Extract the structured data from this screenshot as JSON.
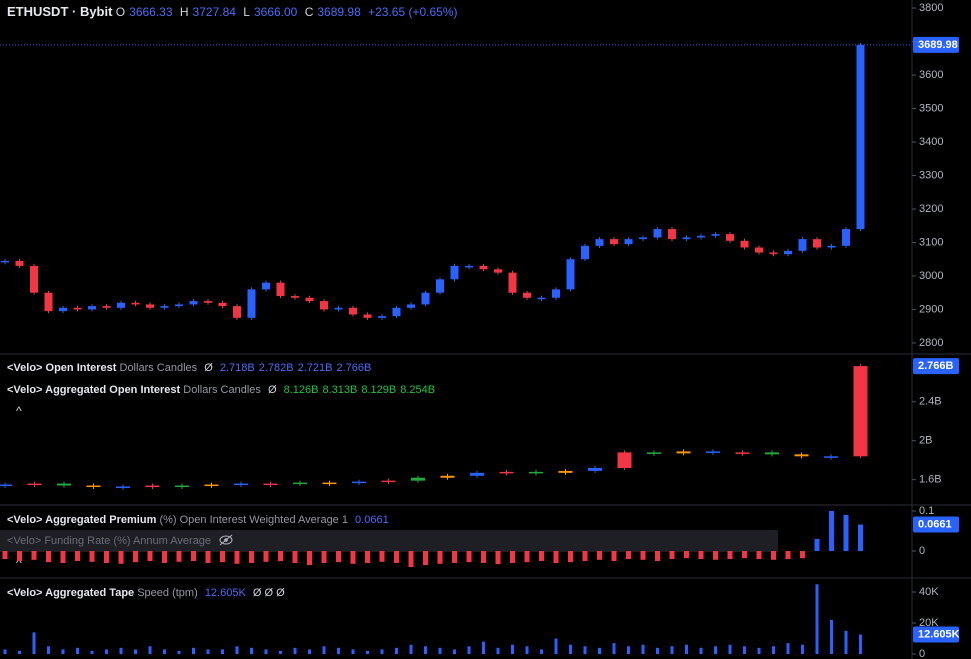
{
  "header": {
    "symbol": "ETHUSDT · Bybit",
    "open_label": "O",
    "open": "3666.33",
    "high_label": "H",
    "high": "3727.84",
    "low_label": "L",
    "low": "3666.00",
    "close_label": "C",
    "close": "3689.98",
    "change": "+23.65 (+0.65%)"
  },
  "price": {
    "ylim": [
      2770,
      3824
    ],
    "yticks": [
      2800,
      2900,
      3000,
      3100,
      3200,
      3300,
      3400,
      3500,
      3600,
      3700,
      3800
    ],
    "last_label": "3689.98",
    "up_color": "#2962ff",
    "down_color": "#f23645",
    "values": [
      3045,
      3030,
      2950,
      2895,
      2905,
      2900,
      2910,
      2905,
      2920,
      2915,
      2905,
      2910,
      2915,
      2925,
      2920,
      2910,
      2875,
      2960,
      2980,
      2940,
      2935,
      2925,
      2900,
      2905,
      2885,
      2875,
      2880,
      2905,
      2915,
      2950,
      2990,
      3030,
      3030,
      3020,
      3010,
      2950,
      2935,
      2935,
      2960,
      3050,
      3090,
      3110,
      3095,
      3110,
      3115,
      3140,
      3110,
      3115,
      3120,
      3125,
      3105,
      3085,
      3070,
      3065,
      3075,
      3110,
      3085,
      3090,
      3140,
      3690
    ]
  },
  "open_interest": {
    "legend": [
      {
        "name": "<Velo> Open Interest",
        "params": "Dollars Candles",
        "symbol": "Ø",
        "values": [
          "2.718B",
          "2.782B",
          "2.721B",
          "2.766B"
        ]
      },
      {
        "name": "<Velo> Aggregated Open Interest",
        "params": "Dollars Candles",
        "symbol": "Ø",
        "values": [
          "8.126B",
          "8.313B",
          "8.129B",
          "8.254B"
        ]
      }
    ],
    "ylim": [
      1.34,
      2.88
    ],
    "yticks": [
      {
        "value": 1.6,
        "label": "1.6B"
      },
      {
        "value": 2,
        "label": "2B"
      },
      {
        "value": 2.4,
        "label": "2.4B"
      }
    ],
    "last_label": "2.766B",
    "values": [
      1.55,
      1.56,
      1.54,
      1.53,
      1.53,
      1.54,
      1.54,
      1.55,
      1.56,
      1.56,
      1.57,
      1.57,
      1.58,
      1.59,
      1.62,
      1.64,
      1.67,
      1.68,
      1.67,
      1.69,
      1.72,
      1.88,
      1.87,
      1.89,
      1.88,
      1.88,
      1.86,
      1.84,
      1.84,
      2.766
    ]
  },
  "premium": {
    "name": "<Velo> Aggregated Premium",
    "params": "(%) Open Interest Weighted Average 1",
    "value": "0.0661",
    "hidden_name": "<Velo> Funding Rate (%) Annum Average",
    "ylim": [
      -0.0675,
      0.1125
    ],
    "yticks": [
      0,
      0.1
    ],
    "last_label": "0.0661",
    "values": [
      -0.02,
      -0.025,
      -0.022,
      -0.028,
      -0.03,
      -0.025,
      -0.027,
      -0.03,
      -0.032,
      -0.028,
      -0.025,
      -0.03,
      -0.027,
      -0.025,
      -0.03,
      -0.028,
      -0.032,
      -0.03,
      -0.027,
      -0.025,
      -0.03,
      -0.035,
      -0.03,
      -0.028,
      -0.032,
      -0.03,
      -0.027,
      -0.03,
      -0.04,
      -0.035,
      -0.032,
      -0.03,
      -0.028,
      -0.03,
      -0.033,
      -0.03,
      -0.028,
      -0.025,
      -0.03,
      -0.028,
      -0.025,
      -0.022,
      -0.025,
      -0.02,
      -0.022,
      -0.025,
      -0.02,
      -0.018,
      -0.02,
      -0.022,
      -0.02,
      -0.018,
      -0.02,
      -0.022,
      -0.02,
      -0.018,
      0.03,
      0.1,
      0.09,
      0.0661
    ]
  },
  "tape": {
    "name": "<Velo> Aggregated Tape",
    "params": "Speed (tpm)",
    "value": "12.605K",
    "symbols": "Ø Ø Ø",
    "ylim": [
      -3.2,
      48.4
    ],
    "yticks": [
      0,
      {
        "value": 20,
        "label": "20K"
      },
      {
        "value": 40,
        "label": "40K"
      }
    ],
    "last_label": "12.605K",
    "values": [
      3,
      2,
      14,
      5,
      3,
      4,
      2,
      3,
      4,
      3,
      5,
      3,
      2,
      4,
      3,
      3,
      5,
      4,
      3,
      2,
      4,
      3,
      5,
      4,
      3,
      2,
      3,
      4,
      6,
      5,
      4,
      3,
      5,
      8,
      4,
      6,
      5,
      3,
      10,
      6,
      5,
      4,
      7,
      5,
      6,
      4,
      5,
      6,
      4,
      5,
      6,
      5,
      4,
      5,
      7,
      6,
      45,
      22,
      15,
      12.605
    ]
  }
}
